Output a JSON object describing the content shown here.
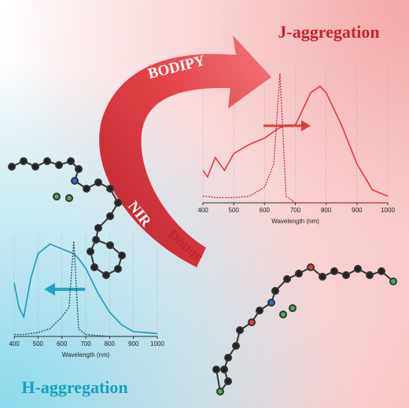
{
  "labels": {
    "j_aggregation": "J-aggregation",
    "h_aggregation": "H-aggregation",
    "bodipy": "BODIPY",
    "nir": "NIR",
    "donor": "Donor"
  },
  "chart_data": [
    {
      "type": "line",
      "x_label": "Wavelength (nm)",
      "x": [
        400,
        415,
        440,
        470,
        500,
        550,
        600,
        630,
        650,
        670,
        700,
        750,
        780,
        800,
        850,
        900,
        950,
        1000
      ],
      "series": [
        {
          "color": "#e23a3a",
          "dash": false,
          "values": [
            0.25,
            0.2,
            0.35,
            0.25,
            0.38,
            0.45,
            0.5,
            0.55,
            0.58,
            0.6,
            0.6,
            0.85,
            0.9,
            0.85,
            0.6,
            0.3,
            0.1,
            0.05
          ]
        },
        {
          "color": "#c0303a",
          "dash": true,
          "values": [
            0.05,
            0.05,
            0.04,
            0.04,
            0.04,
            0.05,
            0.12,
            0.3,
            1.0,
            0.05,
            0.0,
            0.0,
            0.0,
            0.0,
            0.0,
            0.0,
            0.0,
            0.0
          ]
        }
      ],
      "xlim": [
        400,
        1000
      ],
      "xticks": [
        400,
        500,
        600,
        700,
        800,
        900,
        1000
      ],
      "ylim": [
        0,
        1.05
      ],
      "grid": true
    },
    {
      "type": "line",
      "x_label": "Wavelength (nm)",
      "x": [
        400,
        420,
        440,
        470,
        500,
        550,
        600,
        630,
        650,
        670,
        700,
        750,
        800,
        850,
        900,
        950,
        1000
      ],
      "series": [
        {
          "color": "#1a9bb8",
          "dash": false,
          "values": [
            0.55,
            0.3,
            0.2,
            0.6,
            0.85,
            0.95,
            0.9,
            0.87,
            0.85,
            0.8,
            0.7,
            0.45,
            0.25,
            0.12,
            0.05,
            0.04,
            0.03
          ]
        },
        {
          "color": "#2a4a55",
          "dash": true,
          "values": [
            0.02,
            0.02,
            0.02,
            0.03,
            0.04,
            0.08,
            0.2,
            0.3,
            0.98,
            0.08,
            0.02,
            0.01,
            0.0,
            0.0,
            0.0,
            0.0,
            0.0
          ]
        }
      ],
      "xlim": [
        400,
        1000
      ],
      "xticks": [
        400,
        500,
        600,
        700,
        800,
        900,
        1000
      ],
      "ylim": [
        0,
        1.05
      ],
      "grid": true
    }
  ]
}
